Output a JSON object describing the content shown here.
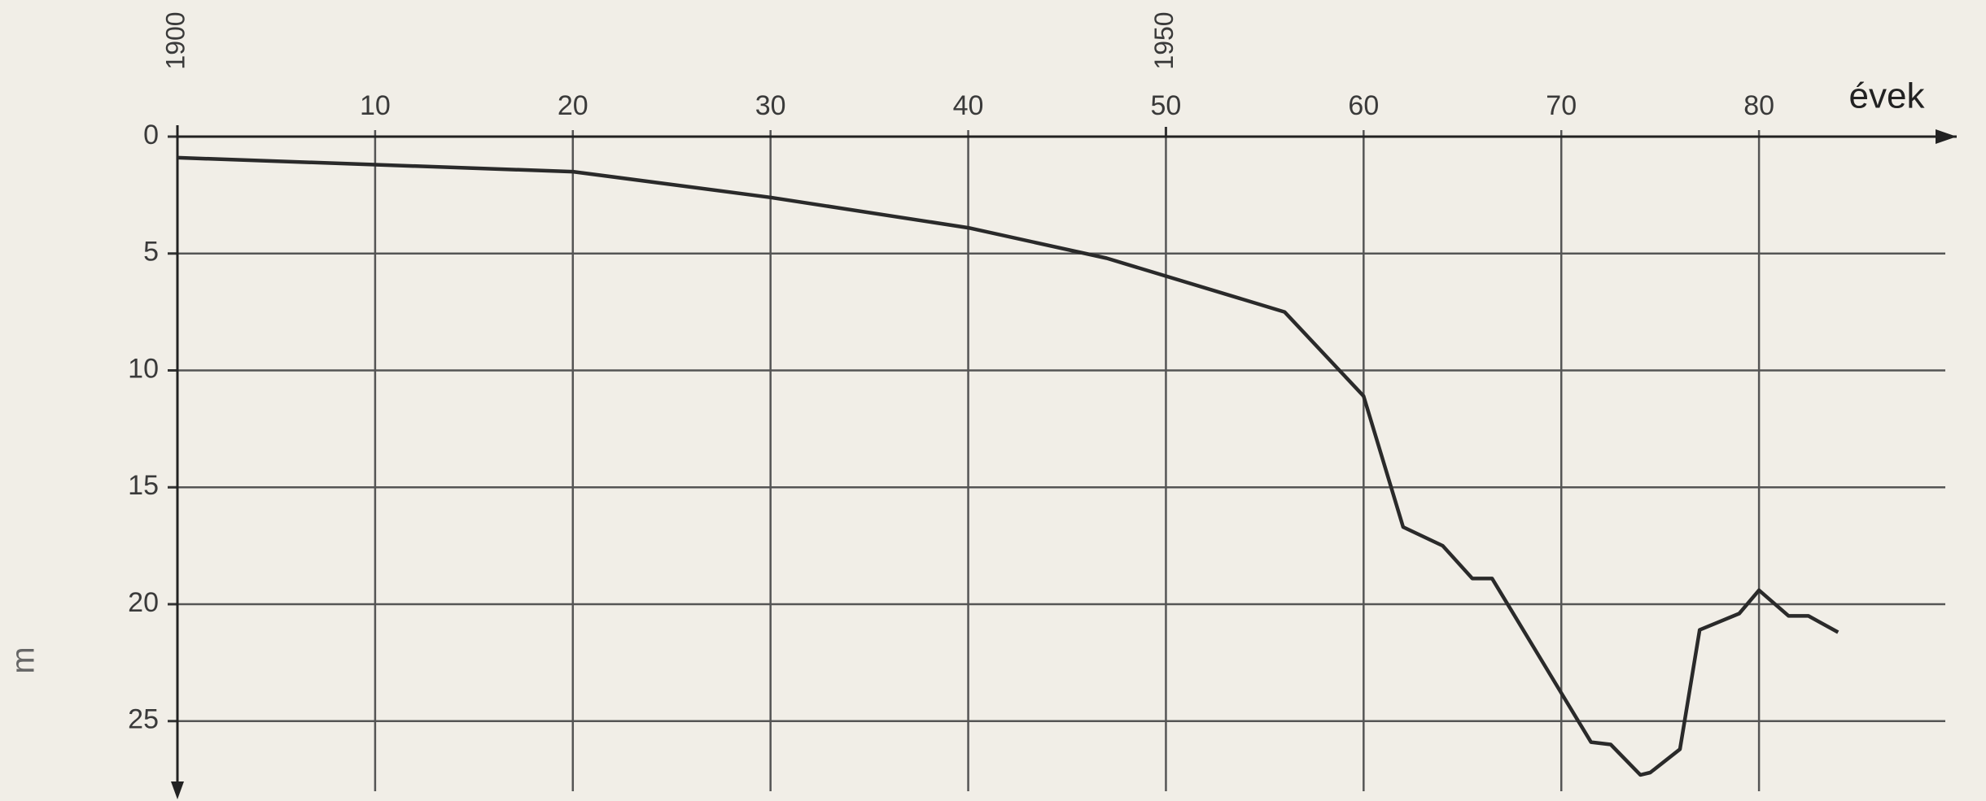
{
  "chart_data": {
    "type": "line",
    "x_label": "évek",
    "y_label": "m",
    "x": [
      1900,
      1910,
      1920,
      1930,
      1940,
      1947,
      1956,
      1960,
      1962,
      1964,
      1965.5,
      1966.5,
      1971.5,
      1972.5,
      1974,
      1974.5,
      1976,
      1977,
      1979,
      1980,
      1981.5,
      1982.5,
      1984
    ],
    "values": [
      0.9,
      1.2,
      1.5,
      2.6,
      3.9,
      5.2,
      7.5,
      11.1,
      16.7,
      17.5,
      18.9,
      18.9,
      25.9,
      26.0,
      27.3,
      27.2,
      26.2,
      21.1,
      20.4,
      19.4,
      20.5,
      20.5,
      21.2
    ],
    "color": "#2a2a2a",
    "xlim": [
      1900,
      1990
    ],
    "ylim": [
      0,
      28
    ],
    "y_inverted": true,
    "xticks": [
      {
        "value": 1910,
        "label": "10"
      },
      {
        "value": 1920,
        "label": "20"
      },
      {
        "value": 1930,
        "label": "30"
      },
      {
        "value": 1940,
        "label": "40"
      },
      {
        "value": 1950,
        "label": "50"
      },
      {
        "value": 1960,
        "label": "60"
      },
      {
        "value": 1970,
        "label": "70"
      },
      {
        "value": 1980,
        "label": "80"
      }
    ],
    "x_year_ticks": [
      {
        "value": 1900,
        "label": "1900"
      },
      {
        "value": 1950,
        "label": "1950"
      }
    ],
    "yticks": [
      0,
      5,
      10,
      15,
      20,
      25
    ],
    "grid": true
  }
}
